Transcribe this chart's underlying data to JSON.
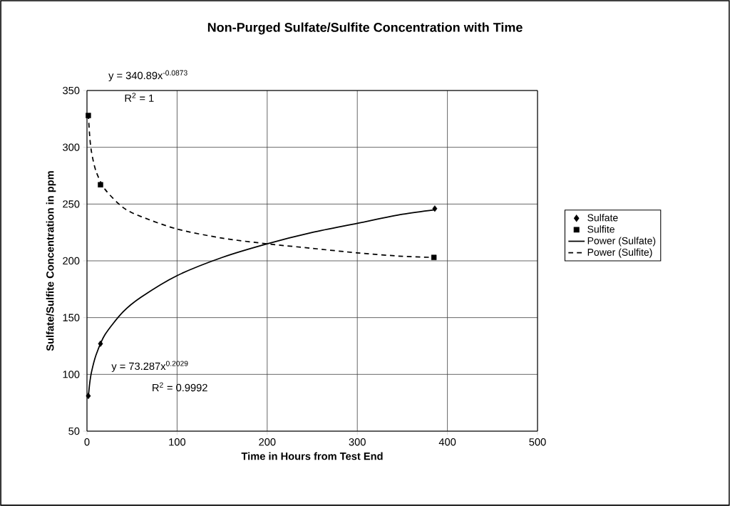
{
  "chart_data": {
    "type": "scatter",
    "title": "Non-Purged Sulfate/Sulfite Concentration with Time",
    "xlabel": "Time in Hours from Test End",
    "ylabel": "Sulfate/Sulfite Concentration in ppm",
    "series": [
      {
        "name": "Sulfate",
        "marker": "diamond",
        "color": "#000000",
        "x": [
          1.5,
          15,
          386
        ],
        "values": [
          81,
          127,
          246
        ]
      },
      {
        "name": "Sulfite",
        "marker": "square",
        "color": "#000000",
        "x": [
          1.5,
          15,
          385
        ],
        "values": [
          328,
          267,
          203
        ]
      },
      {
        "name": "Power (Sulfate)",
        "type": "line",
        "marker": "none",
        "line_style": "solid",
        "color": "#000000",
        "x": [
          1.5,
          3,
          5,
          10,
          20,
          40,
          60,
          100,
          150,
          200,
          250,
          300,
          350,
          386
        ],
        "values": [
          80,
          92,
          102,
          117,
          135,
          155,
          168,
          187,
          203,
          215,
          225,
          233,
          241,
          245
        ]
      },
      {
        "name": "Power (Sulfite)",
        "type": "line",
        "marker": "none",
        "line_style": "dashed",
        "color": "#000000",
        "x": [
          1.5,
          3,
          5,
          10,
          20,
          40,
          60,
          100,
          150,
          200,
          250,
          300,
          350,
          386
        ],
        "values": [
          329,
          310,
          296,
          279,
          263,
          247,
          239,
          228,
          220,
          215,
          211,
          207,
          204,
          203
        ]
      }
    ],
    "annotations": [
      "y = 340.89x$^{-0.0873}$",
      "R$^{2}$ = 1",
      "y = 73.287x$^{0.2029}$",
      "R$^{2}$ = 0.9992"
    ],
    "xlim": [
      0,
      500
    ],
    "xticks": [
      0,
      100,
      200,
      300,
      400,
      500
    ],
    "ylim": [
      50,
      350
    ],
    "yticks": [
      50,
      100,
      150,
      200,
      250,
      300,
      350
    ],
    "grid": true,
    "legend": "right"
  }
}
